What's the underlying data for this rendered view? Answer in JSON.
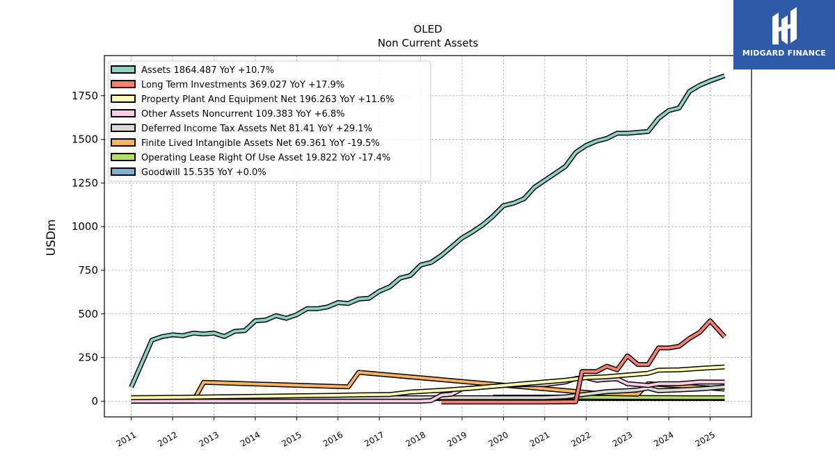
{
  "brand": {
    "name": "MIDGARD FINANCE",
    "logo_icon": "midgard-logo-icon",
    "background": "#2f5aa8"
  },
  "chart_data": {
    "type": "line",
    "title": "OLED",
    "subtitle": "Non Current  Assets",
    "ylabel": "USDm",
    "xlabel": "",
    "ylim": [
      -90,
      1980
    ],
    "xlim": [
      2010.35,
      2026.0
    ],
    "grid": true,
    "legend_position": "top-left",
    "yticks": [
      0,
      250,
      500,
      750,
      1000,
      1250,
      1500,
      1750
    ],
    "ytick_labels": [
      "0",
      "250",
      "500",
      "750",
      "1000",
      "1250",
      "1500",
      "1750"
    ],
    "xticks": [
      2011,
      2012,
      2013,
      2014,
      2015,
      2016,
      2017,
      2018,
      2019,
      2020,
      2021,
      2022,
      2023,
      2024,
      2025
    ],
    "xtick_labels": [
      "2011",
      "2012",
      "2013",
      "2014",
      "2015",
      "2016",
      "2017",
      "2018",
      "2019",
      "2020",
      "2021",
      "2022",
      "2023",
      "2024",
      "2025"
    ],
    "series": [
      {
        "name": "Assets",
        "legend": "Assets  1864.487 YoY +10.7%",
        "color": "#8dd3c7",
        "points": [
          [
            2011.0,
            80
          ],
          [
            2011.5,
            350
          ],
          [
            2011.75,
            370
          ],
          [
            2012.0,
            380
          ],
          [
            2012.25,
            375
          ],
          [
            2012.5,
            390
          ],
          [
            2012.75,
            385
          ],
          [
            2013.0,
            390
          ],
          [
            2013.25,
            370
          ],
          [
            2013.5,
            400
          ],
          [
            2013.75,
            405
          ],
          [
            2014.0,
            460
          ],
          [
            2014.25,
            465
          ],
          [
            2014.5,
            490
          ],
          [
            2014.75,
            475
          ],
          [
            2015.0,
            495
          ],
          [
            2015.25,
            530
          ],
          [
            2015.5,
            530
          ],
          [
            2015.75,
            540
          ],
          [
            2016.0,
            565
          ],
          [
            2016.25,
            560
          ],
          [
            2016.5,
            585
          ],
          [
            2016.75,
            590
          ],
          [
            2017.0,
            630
          ],
          [
            2017.25,
            655
          ],
          [
            2017.5,
            705
          ],
          [
            2017.75,
            720
          ],
          [
            2018.0,
            780
          ],
          [
            2018.25,
            795
          ],
          [
            2018.5,
            835
          ],
          [
            2018.75,
            885
          ],
          [
            2019.0,
            935
          ],
          [
            2019.25,
            970
          ],
          [
            2019.5,
            1010
          ],
          [
            2019.75,
            1060
          ],
          [
            2020.0,
            1120
          ],
          [
            2020.25,
            1135
          ],
          [
            2020.5,
            1160
          ],
          [
            2020.75,
            1225
          ],
          [
            2021.0,
            1265
          ],
          [
            2021.25,
            1305
          ],
          [
            2021.5,
            1345
          ],
          [
            2021.75,
            1425
          ],
          [
            2022.0,
            1465
          ],
          [
            2022.25,
            1490
          ],
          [
            2022.5,
            1505
          ],
          [
            2022.75,
            1535
          ],
          [
            2023.0,
            1535
          ],
          [
            2023.25,
            1540
          ],
          [
            2023.5,
            1545
          ],
          [
            2023.75,
            1620
          ],
          [
            2024.0,
            1665
          ],
          [
            2024.25,
            1680
          ],
          [
            2024.5,
            1775
          ],
          [
            2024.75,
            1810
          ],
          [
            2025.0,
            1835
          ],
          [
            2025.35,
            1864.5
          ]
        ]
      },
      {
        "name": "Long Term Investments",
        "legend": "Long Term Investments  369.027 YoY +17.9%",
        "color": "#fb8072",
        "points": [
          [
            2018.5,
            -5
          ],
          [
            2019.0,
            -5
          ],
          [
            2020.0,
            -5
          ],
          [
            2021.0,
            -5
          ],
          [
            2021.75,
            -3
          ],
          [
            2021.9,
            170
          ],
          [
            2022.25,
            170
          ],
          [
            2022.5,
            200
          ],
          [
            2022.75,
            180
          ],
          [
            2023.0,
            260
          ],
          [
            2023.25,
            210
          ],
          [
            2023.5,
            210
          ],
          [
            2023.75,
            305
          ],
          [
            2024.0,
            305
          ],
          [
            2024.25,
            315
          ],
          [
            2024.5,
            360
          ],
          [
            2024.75,
            395
          ],
          [
            2025.0,
            460
          ],
          [
            2025.35,
            369
          ]
        ]
      },
      {
        "name": "Property Plant And Equipment Net",
        "legend": "Property Plant And Equipment Net  196.263 YoY +11.6%",
        "color": "#ffffb3",
        "points": [
          [
            2011.0,
            20
          ],
          [
            2012.0,
            22
          ],
          [
            2013.0,
            25
          ],
          [
            2014.0,
            28
          ],
          [
            2015.0,
            31
          ],
          [
            2016.0,
            34
          ],
          [
            2016.5,
            36
          ],
          [
            2017.25,
            38
          ],
          [
            2017.75,
            52
          ],
          [
            2018.5,
            62
          ],
          [
            2019.25,
            75
          ],
          [
            2020.0,
            90
          ],
          [
            2020.75,
            105
          ],
          [
            2021.5,
            120
          ],
          [
            2022.0,
            135
          ],
          [
            2022.5,
            140
          ],
          [
            2023.0,
            150
          ],
          [
            2023.5,
            160
          ],
          [
            2023.75,
            178
          ],
          [
            2024.25,
            180
          ],
          [
            2024.75,
            188
          ],
          [
            2025.35,
            196.3
          ]
        ]
      },
      {
        "name": "Other Assets Noncurrent",
        "legend": "Other Assets Noncurrent  109.383 YoY +6.8%",
        "color": "#fccde5",
        "points": [
          [
            2011.0,
            0
          ],
          [
            2012.0,
            0
          ],
          [
            2013.0,
            0
          ],
          [
            2014.0,
            0
          ],
          [
            2015.0,
            0
          ],
          [
            2016.0,
            0
          ],
          [
            2017.0,
            0
          ],
          [
            2018.0,
            0
          ],
          [
            2018.25,
            3
          ],
          [
            2018.5,
            35
          ],
          [
            2018.75,
            40
          ],
          [
            2019.0,
            70
          ],
          [
            2019.5,
            80
          ],
          [
            2020.0,
            90
          ],
          [
            2020.5,
            95
          ],
          [
            2021.0,
            95
          ],
          [
            2021.5,
            110
          ],
          [
            2021.75,
            130
          ],
          [
            2022.0,
            135
          ],
          [
            2022.25,
            120
          ],
          [
            2022.5,
            125
          ],
          [
            2022.75,
            128
          ],
          [
            2023.0,
            100
          ],
          [
            2023.5,
            90
          ],
          [
            2023.75,
            100
          ],
          [
            2024.25,
            100
          ],
          [
            2024.75,
            110
          ],
          [
            2025.35,
            109.4
          ]
        ]
      },
      {
        "name": "Deferred Income Tax Assets Net",
        "legend": "Deferred Income Tax Assets Net  81.41 YoY +29.1%",
        "color": "#d9d9d9",
        "points": [
          [
            2011.0,
            20
          ],
          [
            2012.0,
            20
          ],
          [
            2013.0,
            20
          ],
          [
            2014.0,
            20
          ],
          [
            2015.0,
            20
          ],
          [
            2016.0,
            20
          ],
          [
            2017.0,
            20
          ],
          [
            2018.0,
            20
          ],
          [
            2019.0,
            20
          ],
          [
            2020.0,
            20
          ],
          [
            2021.0,
            20
          ],
          [
            2021.5,
            25
          ],
          [
            2022.0,
            40
          ],
          [
            2022.5,
            55
          ],
          [
            2023.0,
            60
          ],
          [
            2023.25,
            65
          ],
          [
            2023.5,
            75
          ],
          [
            2023.75,
            60
          ],
          [
            2024.25,
            65
          ],
          [
            2024.75,
            70
          ],
          [
            2025.35,
            81.4
          ]
        ]
      },
      {
        "name": "Finite Lived Intangible Assets Net",
        "legend": "Finite Lived Intangible Assets Net  69.361 YoY -19.5%",
        "color": "#fdb462",
        "points": [
          [
            2011.0,
            0
          ],
          [
            2012.5,
            0
          ],
          [
            2012.75,
            108
          ],
          [
            2016.25,
            82
          ],
          [
            2016.5,
            165
          ],
          [
            2022.25,
            45
          ],
          [
            2023.25,
            40
          ],
          [
            2023.5,
            100
          ],
          [
            2024.25,
            88
          ],
          [
            2025.35,
            69.4
          ]
        ]
      },
      {
        "name": "Operating Lease Right Of Use Asset",
        "legend": "Operating Lease Right Of Use Asset  19.822 YoY -17.4%",
        "color": "#b3de69",
        "points": [
          [
            2019.75,
            23
          ],
          [
            2020.5,
            23
          ],
          [
            2021.5,
            23
          ],
          [
            2022.5,
            22
          ],
          [
            2023.5,
            21
          ],
          [
            2024.5,
            20
          ],
          [
            2025.35,
            19.8
          ]
        ]
      },
      {
        "name": "Goodwill",
        "legend": "Goodwill  15.535 YoY +0.0%",
        "color": "#80b1d3",
        "points": [
          [
            2016.7,
            15.5
          ],
          [
            2017.5,
            15.5
          ],
          [
            2018.5,
            15.5
          ],
          [
            2019.5,
            15.5
          ],
          [
            2020.5,
            15.5
          ],
          [
            2021.5,
            15.5
          ],
          [
            2022.5,
            15.5
          ],
          [
            2023.5,
            15.5
          ],
          [
            2024.5,
            15.5
          ],
          [
            2025.35,
            15.5
          ]
        ]
      }
    ]
  }
}
